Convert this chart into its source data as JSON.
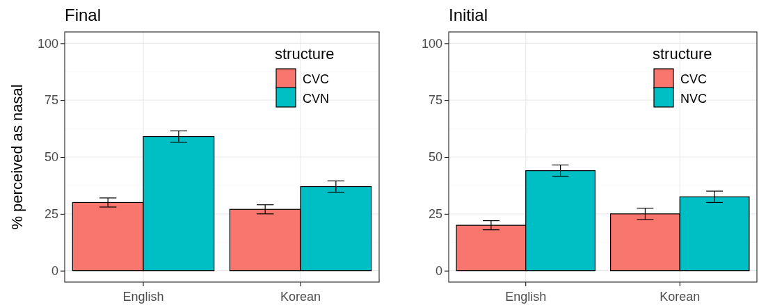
{
  "chart_data": [
    {
      "type": "bar",
      "title": "Final",
      "ylabel": "% perceived as nasal",
      "legend_title": "structure",
      "legend": "top right",
      "grid": true,
      "categories": [
        "English",
        "Korean"
      ],
      "ylim": [
        -5,
        105
      ],
      "yticks": [
        0,
        25,
        50,
        75,
        100
      ],
      "series": [
        {
          "name": "CVC",
          "color": "#f8766d",
          "values": [
            30,
            27
          ],
          "errors": [
            2,
            2
          ]
        },
        {
          "name": "CVN",
          "color": "#00bfc4",
          "values": [
            59,
            37
          ],
          "errors": [
            2.5,
            2.5
          ]
        }
      ]
    },
    {
      "type": "bar",
      "title": "Initial",
      "legend_title": "structure",
      "legend": "top right",
      "grid": true,
      "categories": [
        "English",
        "Korean"
      ],
      "ylim": [
        -5,
        105
      ],
      "yticks": [
        0,
        25,
        50,
        75,
        100
      ],
      "series": [
        {
          "name": "CVC",
          "color": "#f8766d",
          "values": [
            20,
            25
          ],
          "errors": [
            2,
            2.5
          ]
        },
        {
          "name": "NVC",
          "color": "#00bfc4",
          "values": [
            44,
            32.5
          ],
          "errors": [
            2.5,
            2.5
          ]
        }
      ]
    }
  ]
}
